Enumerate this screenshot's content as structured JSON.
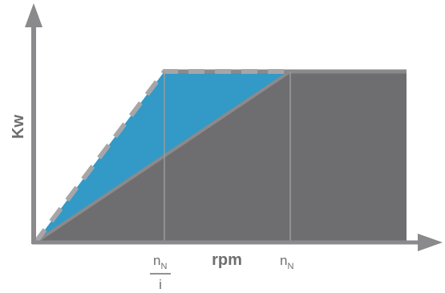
{
  "diagram": {
    "y_axis_label": "Kw",
    "x_axis_label": "rpm",
    "tick_reduced": {
      "letter": "n",
      "subscript": "N",
      "denominator": "i"
    },
    "tick_nominal": {
      "letter": "n",
      "subscript": "N"
    },
    "colors": {
      "dark_area": "#6e6e70",
      "blue_area": "#3399c6",
      "lines": "#8a8a8c",
      "dashed_outline": "#a6a6a8",
      "axis": "#8a8a8c",
      "text": "#6e6e70"
    },
    "icons": {
      "y_axis_arrow": "arrow-up-icon",
      "x_axis_arrow": "arrow-right-icon"
    }
  }
}
